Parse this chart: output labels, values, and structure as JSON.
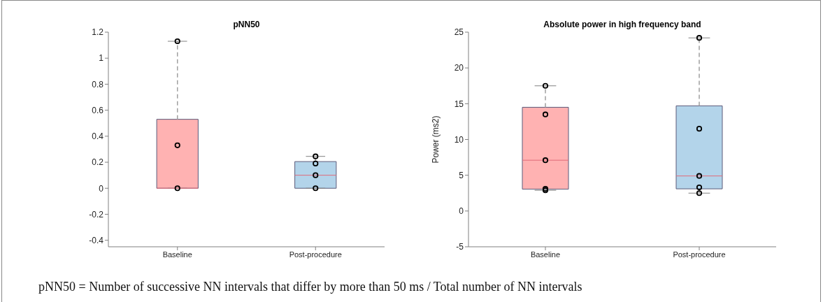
{
  "chart_data": [
    {
      "type": "box",
      "title": "pNN50",
      "categories": [
        "Baseline",
        "Post-procedure"
      ],
      "colors": [
        "#ffb2b2",
        "#b3d4ea"
      ],
      "boxes": [
        {
          "low": 0,
          "q1": 0,
          "median": 0,
          "q3": 0.53,
          "high": 1.13
        },
        {
          "low": 0,
          "q1": 0,
          "median": 0.1,
          "q3": 0.205,
          "high": 0.245
        }
      ],
      "series": [
        {
          "type": "scatter",
          "color": "#000000",
          "x": [
            "Baseline",
            "Baseline",
            "Baseline",
            "Post-procedure",
            "Post-procedure",
            "Post-procedure",
            "Post-procedure"
          ],
          "values": [
            0,
            0.33,
            1.13,
            0,
            0.1,
            0.19,
            0.245
          ]
        }
      ],
      "marker": "circle",
      "ylim": [
        -0.45,
        1.2
      ],
      "yticks": [
        -0.4,
        -0.2,
        0,
        0.2,
        0.4,
        0.6,
        0.8,
        1,
        1.2
      ],
      "grid": false,
      "legend": false,
      "annotations": [
        "pNN50 = Number of successive NN intervals that differ by more than 50 ms / Total number of NN intervals"
      ]
    },
    {
      "type": "box",
      "title": "Absolute power in high frequency band",
      "ylabel": "Power (ms2)",
      "categories": [
        "Baseline",
        "Post-procedure"
      ],
      "colors": [
        "#ffb2b2",
        "#b3d4ea"
      ],
      "boxes": [
        {
          "low": 2.9,
          "q1": 3.05,
          "median": 7.1,
          "q3": 14.5,
          "high": 17.5
        },
        {
          "low": 2.5,
          "q1": 3.1,
          "median": 4.9,
          "q3": 14.7,
          "high": 24.2
        }
      ],
      "series": [
        {
          "type": "scatter",
          "color": "#000000",
          "x": [
            "Baseline",
            "Baseline",
            "Baseline",
            "Baseline",
            "Baseline",
            "Post-procedure",
            "Post-procedure",
            "Post-procedure",
            "Post-procedure",
            "Post-procedure"
          ],
          "values": [
            2.9,
            3.1,
            7.1,
            13.5,
            17.5,
            2.5,
            3.3,
            4.9,
            11.5,
            24.2
          ]
        }
      ],
      "marker": "circle",
      "ylim": [
        -5,
        25
      ],
      "yticks": [
        -5,
        0,
        5,
        10,
        15,
        20,
        25
      ],
      "grid": false,
      "legend": false
    }
  ]
}
